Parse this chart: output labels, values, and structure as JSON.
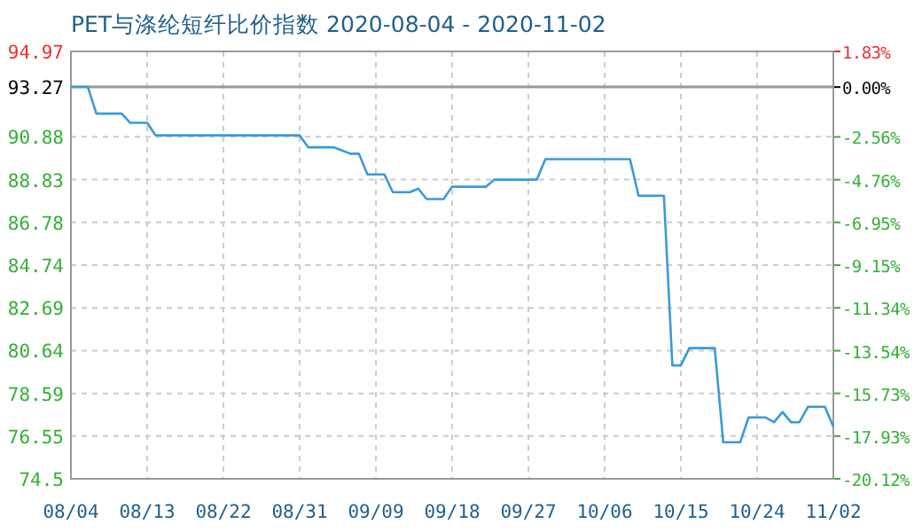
{
  "chart_data": {
    "type": "line",
    "title": "PET与涤纶短纤比价指数 2020-08-04 - 2020-11-02",
    "x": [
      "2020-08-04",
      "2020-08-06",
      "2020-08-07",
      "2020-08-10",
      "2020-08-11",
      "2020-08-13",
      "2020-08-14",
      "2020-08-31",
      "2020-09-01",
      "2020-09-04",
      "2020-09-06",
      "2020-09-07",
      "2020-09-08",
      "2020-09-10",
      "2020-09-11",
      "2020-09-13",
      "2020-09-14",
      "2020-09-15",
      "2020-09-17",
      "2020-09-18",
      "2020-09-22",
      "2020-09-23",
      "2020-09-28",
      "2020-09-29",
      "2020-10-09",
      "2020-10-10",
      "2020-10-13",
      "2020-10-14",
      "2020-10-15",
      "2020-10-16",
      "2020-10-19",
      "2020-10-20",
      "2020-10-22",
      "2020-10-23",
      "2020-10-25",
      "2020-10-26",
      "2020-10-27",
      "2020-10-28",
      "2020-10-29",
      "2020-10-30",
      "2020-11-01",
      "2020-11-02"
    ],
    "series": [
      {
        "color": "#3a9ad9",
        "values": [
          93.27,
          93.27,
          91.99,
          91.99,
          91.55,
          91.55,
          90.95,
          90.95,
          90.38,
          90.38,
          90.07,
          90.07,
          89.08,
          89.08,
          88.23,
          88.23,
          88.4,
          87.9,
          87.9,
          88.49,
          88.49,
          88.83,
          88.83,
          89.81,
          89.81,
          88.06,
          88.06,
          79.93,
          79.93,
          80.76,
          80.76,
          76.25,
          76.25,
          77.44,
          77.44,
          77.21,
          77.7,
          77.21,
          77.21,
          77.95,
          77.95,
          77.0
        ]
      }
    ],
    "xlim": [
      "2020-08-04",
      "2020-11-02"
    ],
    "xticks": [
      {
        "value": "2020-08-04",
        "label": "08/04"
      },
      {
        "value": "2020-08-13",
        "label": "08/13"
      },
      {
        "value": "2020-08-22",
        "label": "08/22"
      },
      {
        "value": "2020-08-31",
        "label": "08/31"
      },
      {
        "value": "2020-09-09",
        "label": "09/09"
      },
      {
        "value": "2020-09-18",
        "label": "09/18"
      },
      {
        "value": "2020-09-27",
        "label": "09/27"
      },
      {
        "value": "2020-10-06",
        "label": "10/06"
      },
      {
        "value": "2020-10-15",
        "label": "10/15"
      },
      {
        "value": "2020-10-24",
        "label": "10/24"
      },
      {
        "value": "2020-11-02",
        "label": "11/02"
      }
    ],
    "ylim": [
      74.5,
      94.97
    ],
    "yticks": [
      74.5,
      76.55,
      78.59,
      80.64,
      82.69,
      84.74,
      86.78,
      88.83,
      90.88,
      93.27,
      94.97
    ],
    "y2lim": [
      -20.12,
      1.83
    ],
    "y2ticks": [
      {
        "value": -20.12,
        "label": "-20.12%"
      },
      {
        "value": -17.93,
        "label": "-17.93%"
      },
      {
        "value": -15.73,
        "label": "-15.73%"
      },
      {
        "value": -13.54,
        "label": "-13.54%"
      },
      {
        "value": -11.34,
        "label": "-11.34%"
      },
      {
        "value": -9.15,
        "label": "-9.15%"
      },
      {
        "value": -6.95,
        "label": "-6.95%"
      },
      {
        "value": -4.76,
        "label": "-4.76%"
      },
      {
        "value": -2.56,
        "label": "-2.56%"
      },
      {
        "value": 0,
        "label": "0.00%"
      },
      {
        "value": 1.83,
        "label": "1.83%"
      }
    ],
    "ref_lines": [
      {
        "axis": "y",
        "value": 93.27,
        "color": "#999999"
      }
    ],
    "grid": true,
    "marker": "none",
    "line_style": "solid"
  }
}
